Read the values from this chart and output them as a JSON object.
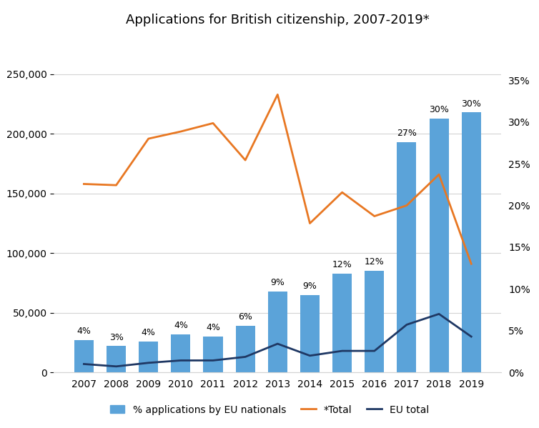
{
  "years": [
    2007,
    2008,
    2009,
    2010,
    2011,
    2012,
    2013,
    2014,
    2015,
    2016,
    2017,
    2018,
    2019
  ],
  "bar_values": [
    27000,
    22000,
    26000,
    32000,
    30000,
    39000,
    68000,
    65000,
    83000,
    85000,
    193000,
    213000,
    218000
  ],
  "total_line": [
    158000,
    157000,
    196000,
    202000,
    209000,
    178000,
    233000,
    125000,
    151000,
    131000,
    140000,
    166000,
    91000
  ],
  "eu_total_line": [
    7000,
    5000,
    8000,
    10000,
    10000,
    13000,
    24000,
    14000,
    18000,
    18000,
    40000,
    49000,
    30000
  ],
  "bar_pct_labels": [
    "4%",
    "3%",
    "4%",
    "4%",
    "4%",
    "6%",
    "9%",
    "9%",
    "12%",
    "12%",
    "27%",
    "30%",
    "30%"
  ],
  "bar_color": "#5BA3D9",
  "total_line_color": "#E87722",
  "eu_line_color": "#1F3864",
  "title": "Applications for British citizenship, 2007-2019*",
  "left_ylim": [
    0,
    280000
  ],
  "right_ylim": [
    0,
    0.4
  ],
  "left_yticks": [
    0,
    50000,
    100000,
    150000,
    200000,
    250000
  ],
  "left_yticklabels": [
    "0",
    "50,000",
    "100,000",
    "150,000",
    "200,000",
    "250,000"
  ],
  "right_yticks": [
    0.0,
    0.05,
    0.1,
    0.15,
    0.2,
    0.25,
    0.3,
    0.35
  ],
  "right_yticklabels": [
    "0%",
    "5%",
    "10%",
    "15%",
    "20%",
    "25%",
    "30%",
    "35%"
  ],
  "legend_labels": [
    "% applications by EU nationals",
    "*Total",
    "EU total"
  ],
  "bar_width": 0.6,
  "figsize": [
    7.54,
    5.99
  ],
  "dpi": 100
}
